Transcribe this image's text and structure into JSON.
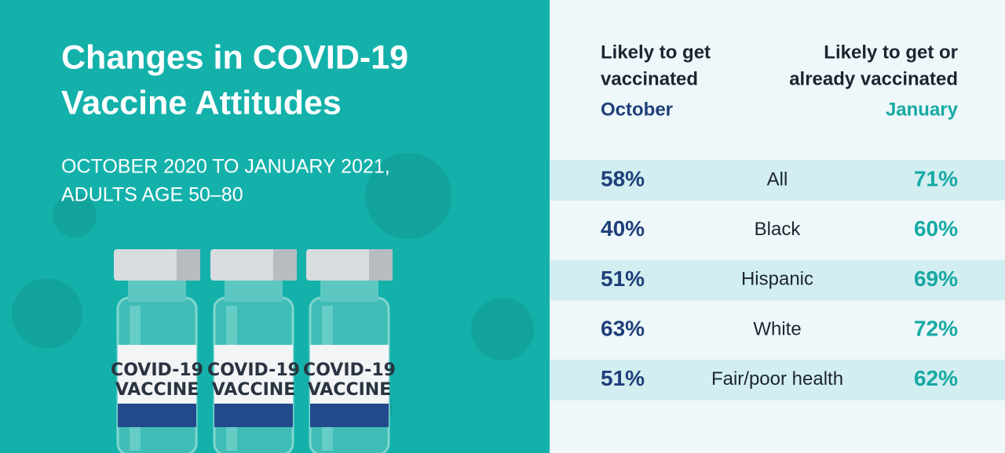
{
  "header": {
    "title_lines": [
      "Changes in COVID-19",
      "Vaccine Attitudes"
    ],
    "subtitle_lines": [
      "OCTOBER 2020 TO JANUARY 2021,",
      "ADULTS AGE 50–80"
    ]
  },
  "vial_label": [
    "COVID-19",
    "VACCINE"
  ],
  "table": {
    "left_header": [
      "Likely to get",
      "vaccinated"
    ],
    "left_period": "October",
    "right_header": [
      "Likely to get or",
      "already vaccinated"
    ],
    "right_period": "January",
    "rows": [
      [
        "58%",
        "All",
        "71%"
      ],
      [
        "40%",
        "Black",
        "60%"
      ],
      [
        "51%",
        "Hispanic",
        "69%"
      ],
      [
        "63%",
        "White",
        "72%"
      ],
      [
        "51%",
        "Fair/poor health",
        "62%"
      ]
    ]
  }
}
